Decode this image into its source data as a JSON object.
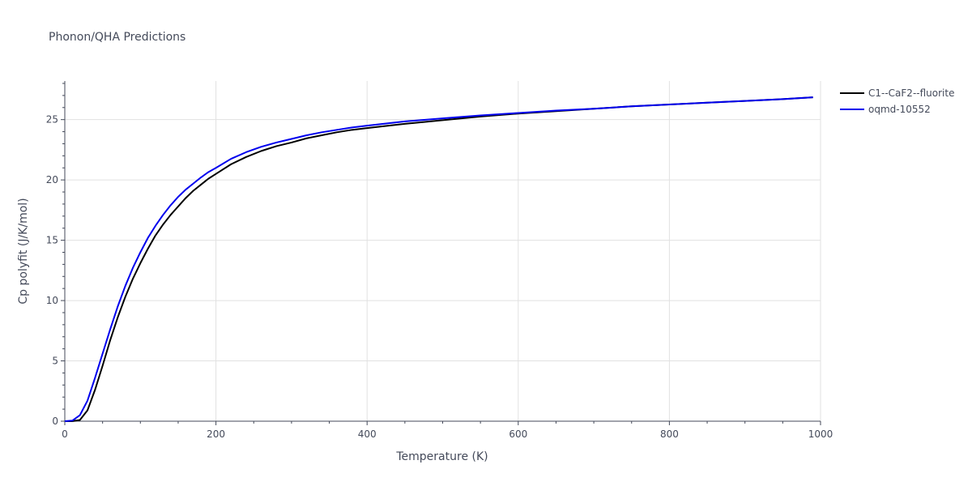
{
  "chart_data": {
    "type": "line",
    "title": "Phonon/QHA Predictions",
    "xlabel": "Temperature (K)",
    "ylabel": "Cp polyfit (J/K/mol)",
    "xlim": [
      0,
      1000
    ],
    "ylim": [
      0,
      28.2
    ],
    "xticks": [
      0,
      200,
      400,
      600,
      800,
      1000
    ],
    "yticks": [
      0,
      5,
      10,
      15,
      20,
      25
    ],
    "grid": true,
    "legend_position": "top-right",
    "series": [
      {
        "name": "C1--CaF2--fluorite",
        "color": "#000000",
        "x": [
          0,
          10,
          20,
          30,
          40,
          50,
          60,
          70,
          80,
          90,
          100,
          110,
          120,
          130,
          140,
          150,
          160,
          170,
          180,
          190,
          200,
          220,
          240,
          260,
          280,
          300,
          320,
          340,
          360,
          380,
          400,
          450,
          500,
          550,
          600,
          650,
          700,
          750,
          800,
          850,
          900,
          950,
          990
        ],
        "y": [
          0,
          0,
          0.1,
          0.9,
          2.6,
          4.6,
          6.7,
          8.6,
          10.3,
          11.8,
          13.1,
          14.3,
          15.4,
          16.3,
          17.1,
          17.8,
          18.5,
          19.1,
          19.6,
          20.1,
          20.5,
          21.3,
          21.9,
          22.4,
          22.8,
          23.1,
          23.45,
          23.7,
          23.95,
          24.15,
          24.3,
          24.65,
          24.95,
          25.25,
          25.5,
          25.7,
          25.9,
          26.1,
          26.25,
          26.4,
          26.55,
          26.7,
          26.85
        ]
      },
      {
        "name": "oqmd-10552",
        "color": "#0000ee",
        "x": [
          0,
          10,
          20,
          30,
          40,
          50,
          60,
          70,
          80,
          90,
          100,
          110,
          120,
          130,
          140,
          150,
          160,
          170,
          180,
          190,
          200,
          220,
          240,
          260,
          280,
          300,
          320,
          340,
          360,
          380,
          400,
          450,
          500,
          550,
          600,
          650,
          700,
          750,
          800,
          850,
          900,
          950,
          990
        ],
        "y": [
          0,
          0.05,
          0.5,
          1.7,
          3.6,
          5.6,
          7.6,
          9.5,
          11.2,
          12.7,
          14.0,
          15.2,
          16.2,
          17.1,
          17.9,
          18.6,
          19.2,
          19.7,
          20.2,
          20.65,
          21.0,
          21.75,
          22.3,
          22.75,
          23.1,
          23.4,
          23.7,
          23.95,
          24.15,
          24.35,
          24.5,
          24.85,
          25.1,
          25.35,
          25.55,
          25.75,
          25.9,
          26.1,
          26.25,
          26.4,
          26.55,
          26.7,
          26.85
        ]
      }
    ]
  }
}
